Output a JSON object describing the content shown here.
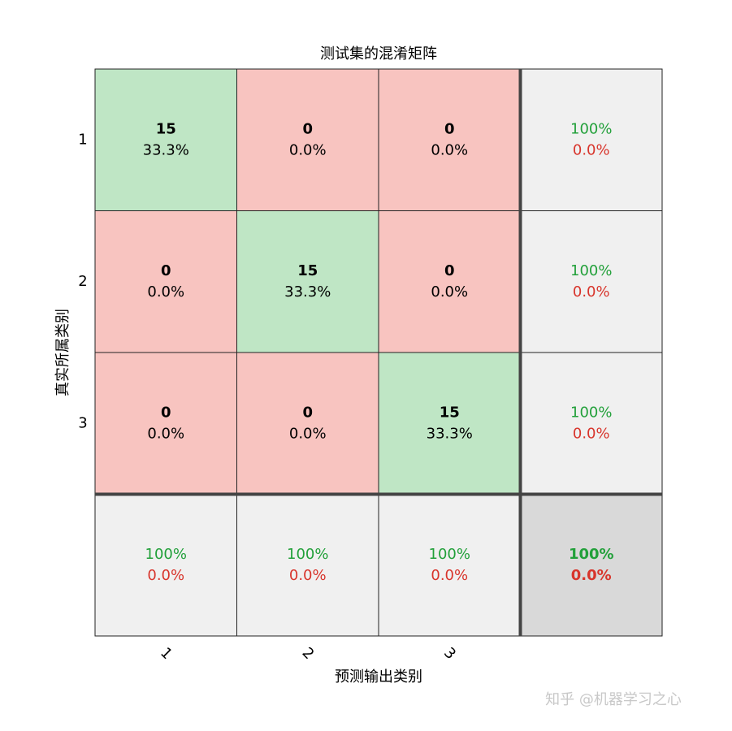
{
  "chart_data": {
    "type": "confusion_matrix",
    "title": "测试集的混淆矩阵",
    "xlabel": "预测输出类别",
    "ylabel": "真实所属类别",
    "categories": [
      "1",
      "2",
      "3"
    ],
    "values": [
      [
        15,
        0,
        0
      ],
      [
        0,
        15,
        0
      ],
      [
        0,
        0,
        15
      ]
    ],
    "value_labels": [
      [
        "33.3%",
        "0.0%",
        "0.0%"
      ],
      [
        "0.0%",
        "33.3%",
        "0.0%"
      ],
      [
        "0.0%",
        "0.0%",
        "33.3%"
      ]
    ],
    "row_summary": [
      [
        "100%",
        "0.0%"
      ],
      [
        "100%",
        "0.0%"
      ],
      [
        "100%",
        "0.0%"
      ]
    ],
    "column_summary": [
      [
        "100%",
        "0.0%"
      ],
      [
        "100%",
        "0.0%"
      ],
      [
        "100%",
        "0.0%"
      ]
    ],
    "total_summary": [
      "100%",
      "0.0%"
    ],
    "colors": {
      "correct": "#bfe6c5",
      "incorrect": "#f8c4c0",
      "summary": "#f0f0f0",
      "total": "#d9d9d9",
      "good_text": "#22a03a",
      "bad_text": "#d8352c"
    }
  },
  "watermark": "知乎 @机器学习之心"
}
